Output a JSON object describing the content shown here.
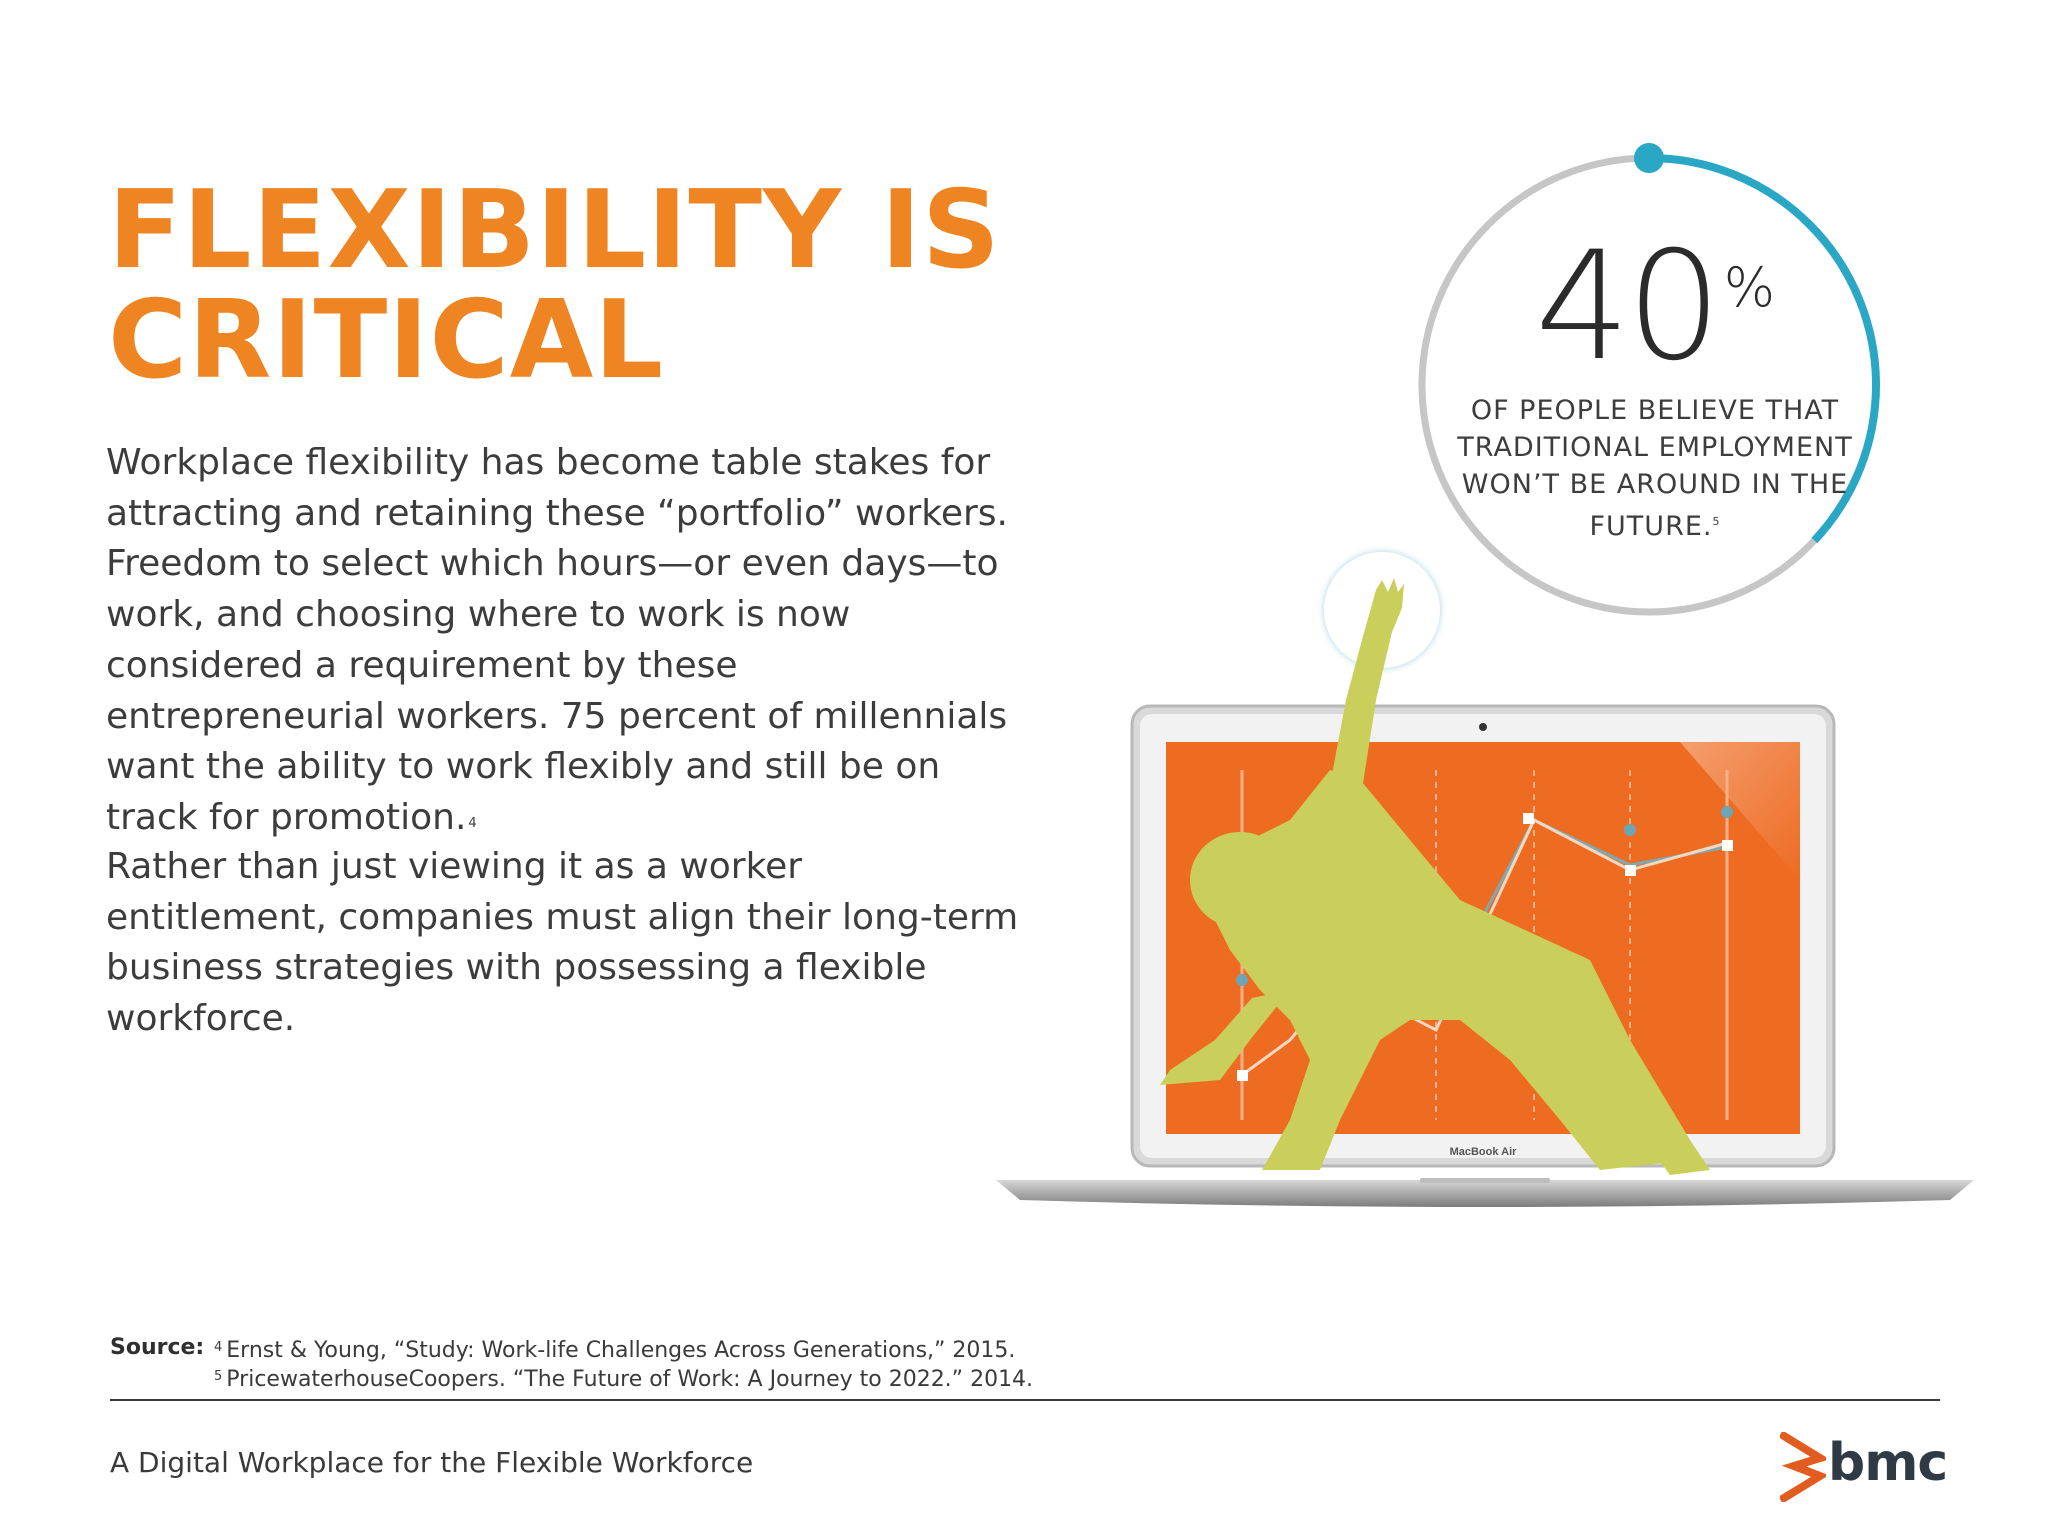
{
  "page": {
    "headline_lines": [
      "FLEXIBILITY IS",
      "CRITICAL"
    ],
    "paragraph1": {
      "text": "Workplace flexibility has become table stakes for attracting and retaining these “portfolio” workers. Freedom to select which hours—or even days—to work, and choosing where to work is now considered a requirement by these entrepreneurial workers. 75 percent of millennials want the ability to work flexibly and still be on track for promotion.",
      "footnote": "4"
    },
    "paragraph2": "Rather than just viewing it as a worker entitlement, companies must align their long-term business strategies with possessing a flexible workforce."
  },
  "stat": {
    "number": "40",
    "unit": "%",
    "ring_fraction": 0.37,
    "description": "OF PEOPLE BELIEVE THAT TRADITIONAL EMPLOYMENT WON’T BE AROUND IN THE FUTURE.",
    "footnote": "5"
  },
  "illustration": {
    "laptop_label": "MacBook Air"
  },
  "sources": {
    "label": "Source:",
    "items": [
      {
        "marker": "4",
        "text": "Ernst & Young, “Study: Work-life Challenges Across Generations,” 2015."
      },
      {
        "marker": "5",
        "text": "PricewaterhouseCoopers. “The Future of Work: A Journey to 2022.” 2014."
      }
    ]
  },
  "footer": {
    "title": "A Digital Workplace for the Flexible Workforce",
    "logo_text": "bmc"
  },
  "colors": {
    "headline": "#ef8423",
    "ring_accent": "#2aa7c4",
    "ring_base": "#c6c6c6",
    "screen": "#ee6b22",
    "figure": "#c9cf5a",
    "logo_mark": "#e25c1f",
    "logo_text": "#2f3a45"
  }
}
